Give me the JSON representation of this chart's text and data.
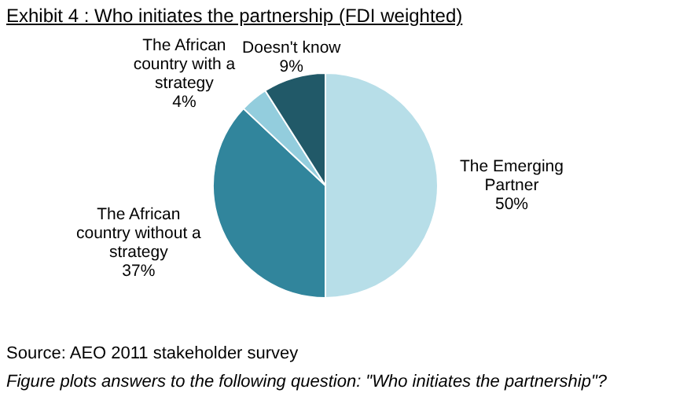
{
  "chart_data": {
    "type": "pie",
    "title": "Exhibit 4 : Who initiates the partnership (FDI weighted)",
    "categories": [
      "The Emerging Partner",
      "The African country without a strategy",
      "The African country with a strategy",
      "Doesn't know"
    ],
    "values": [
      50,
      37,
      4,
      9
    ],
    "value_labels": [
      "50%",
      "37%",
      "4%",
      "9%"
    ],
    "colors": [
      "#b7dee8",
      "#31859c",
      "#93cddd",
      "#215968"
    ],
    "legend": false,
    "annotations": [
      "Source: AEO 2011 stakeholder survey",
      "Figure plots answers to the following question: \"Who initiates the partnership\"?"
    ]
  }
}
